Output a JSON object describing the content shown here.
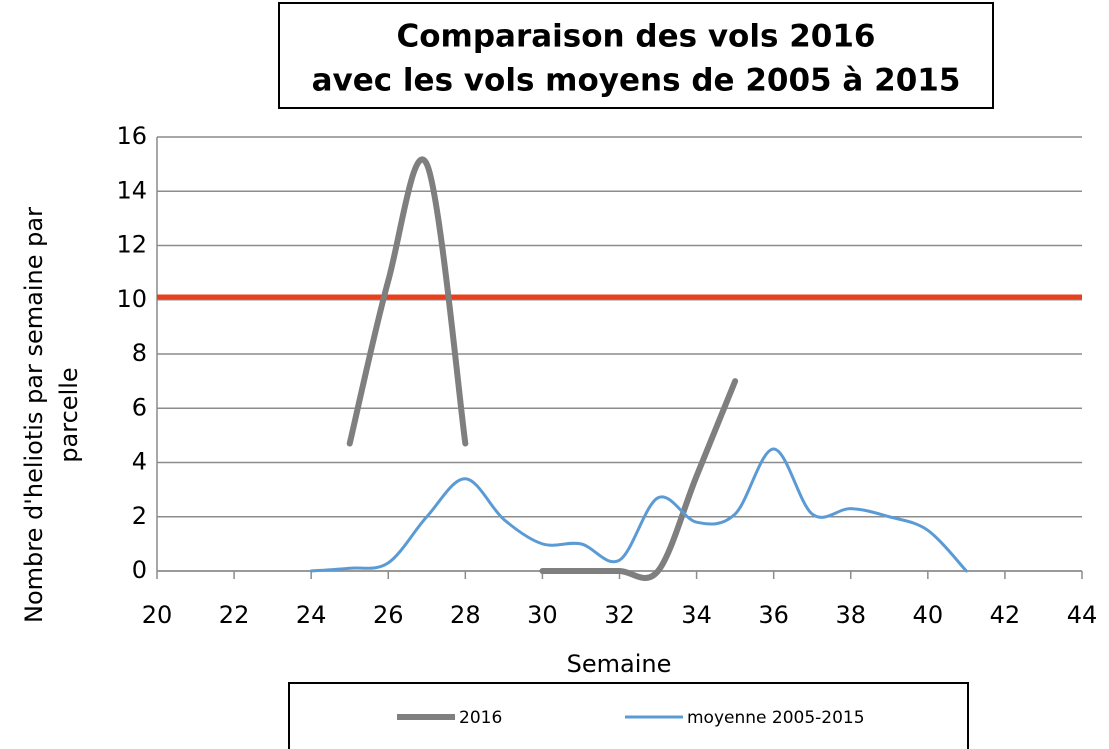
{
  "chart_data": {
    "type": "line",
    "title": [
      "Comparaison des vols 2016",
      "avec les vols moyens de 2005 à 2015"
    ],
    "xlabel": "Semaine",
    "ylabel": [
      "Nombre d'heliotis par semaine par",
      "parcelle"
    ],
    "x": [
      24,
      25,
      26,
      27,
      28,
      29,
      30,
      31,
      32,
      33,
      34,
      35,
      36,
      37,
      38,
      39,
      40,
      41
    ],
    "series": [
      {
        "name": "2016",
        "color": "#7f7f7f",
        "width": 6,
        "values": [
          null,
          4.7,
          10.7,
          15,
          4.7,
          null,
          0,
          0,
          0,
          0,
          3.5,
          7,
          null,
          null,
          null,
          null,
          null,
          null
        ]
      },
      {
        "name": "moyenne 2005-2015",
        "color": "#5b9bd5",
        "width": 3,
        "values": [
          0,
          0.1,
          0.3,
          2,
          3.4,
          1.9,
          1,
          1,
          0.4,
          2.7,
          1.8,
          2.1,
          4.5,
          2.1,
          2.3,
          2,
          1.5,
          0
        ]
      }
    ],
    "reference_line": {
      "value": 10.1,
      "color": "#e8401c"
    },
    "xlim": [
      20,
      44
    ],
    "xticks": [
      20,
      22,
      24,
      26,
      28,
      30,
      32,
      34,
      36,
      38,
      40,
      42,
      44
    ],
    "ylim": [
      0,
      16
    ],
    "yticks": [
      0,
      2,
      4,
      6,
      8,
      10,
      12,
      14,
      16
    ],
    "grid": true,
    "smooth": true,
    "legend": "bottom"
  }
}
